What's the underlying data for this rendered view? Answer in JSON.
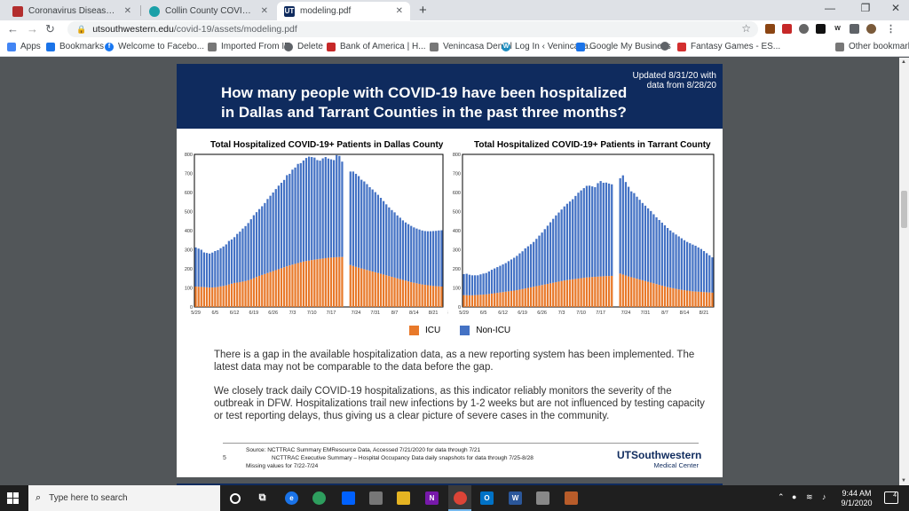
{
  "browser": {
    "tabs": [
      {
        "label": "Coronavirus Disease 2019 (COVID",
        "icon": "cdc-icon",
        "color": "#b32e2e"
      },
      {
        "label": "Collin County COVID-19",
        "icon": "globe-icon",
        "color": "#1aa0a8"
      },
      {
        "label": "modeling.pdf",
        "icon": "ut-icon",
        "color": "#0f2b5e",
        "icon_text": "UT"
      }
    ],
    "url_domain": "utsouthwestern.edu",
    "url_path": "/covid-19/assets/modeling.pdf",
    "bookmarks": [
      {
        "label": "Apps",
        "icon": "apps-grid-icon",
        "color": "#4285f4"
      },
      {
        "label": "Bookmarks",
        "icon": "star-icon",
        "color": "#1a73e8"
      },
      {
        "label": "Welcome to Facebo...",
        "icon": "facebook-icon",
        "color": "#1877f2",
        "icon_text": "f"
      },
      {
        "label": "Imported From IE",
        "icon": "folder-icon",
        "color": "#777777"
      },
      {
        "label": "Delete",
        "icon": "globe-icon",
        "color": "#5f6368"
      },
      {
        "label": "Bank of America | H...",
        "icon": "boa-icon",
        "color": "#c62828"
      },
      {
        "label": "Venincasa Dental",
        "icon": "folder-icon",
        "color": "#777777"
      },
      {
        "label": "Log In ‹ Venincasa...",
        "icon": "wordpress-icon",
        "color": "#1e8cbe",
        "icon_text": "W"
      },
      {
        "label": "Google My Business",
        "icon": "gmb-icon",
        "color": "#1a73e8"
      },
      {
        "label": "",
        "icon": "globe-icon",
        "color": "#5f6368"
      },
      {
        "label": "Fantasy Games - ES...",
        "icon": "espn-icon",
        "color": "#d32f2f"
      },
      {
        "label": "Other bookmarks",
        "icon": "folder-icon",
        "color": "#777777"
      }
    ]
  },
  "slide": {
    "updated_line1": "Updated 8/31/20 with",
    "updated_line2": "data from 8/28/20",
    "title_line1": "How many people with COVID-19 have been hospitalized",
    "title_line2": "in Dallas and Tarrant Counties in the past three months?",
    "legend_icu": "ICU",
    "legend_nonicu": "Non-ICU",
    "para1": "There is a gap in the available hospitalization data, as a new reporting system has been implemented. The latest data may not be comparable to the data before the gap.",
    "para2": "We closely track daily COVID-19 hospitalizations, as this indicator reliably monitors the severity of the outbreak in DFW. Hospitalizations trail new infections by 1-2 weeks but are not influenced by testing capacity or test reporting delays, thus giving us a clear picture of severe cases in the community.",
    "source1": "Source: NCTTRAC Summary EMResource Data, Accessed 7/21/2020 for data through 7/21",
    "source2": "NCTTRAC Executive Summary – Hospital Occupancy Data daily snapshots for data through 7/25-8/28",
    "source3": "Missing values for 7/22-7/24",
    "page_number": "5",
    "logo_line1": "UTSouthwestern",
    "logo_line2": "Medical Center"
  },
  "colors": {
    "icu": "#e8792a",
    "non_icu": "#4472c4",
    "banner": "#0f2b5e"
  },
  "chart_data": [
    {
      "type": "bar",
      "title": "Total Hospitalized COVID-19+ Patients in Dallas County",
      "stacked": true,
      "ylim": [
        0,
        800
      ],
      "yticks": [
        0,
        100,
        200,
        300,
        400,
        500,
        600,
        700,
        800
      ],
      "xticks": [
        "5/29",
        "6/5",
        "6/12",
        "6/19",
        "6/26",
        "7/3",
        "7/10",
        "7/17",
        "7/24",
        "7/31",
        "8/7",
        "8/14",
        "8/21",
        "8/28"
      ],
      "gap_after_index": 53,
      "series": [
        {
          "name": "ICU",
          "values": [
            107,
            106,
            105,
            104,
            103,
            102,
            102,
            103,
            105,
            108,
            110,
            113,
            118,
            122,
            126,
            128,
            130,
            133,
            136,
            140,
            145,
            151,
            157,
            163,
            168,
            173,
            178,
            183,
            188,
            193,
            198,
            203,
            208,
            213,
            218,
            222,
            226,
            230,
            234,
            238,
            241,
            243,
            246,
            248,
            250,
            252,
            254,
            256,
            258,
            259,
            260,
            261,
            262,
            262,
            220,
            215,
            210,
            206,
            202,
            198,
            194,
            190,
            186,
            182,
            178,
            174,
            170,
            166,
            162,
            158,
            154,
            150,
            146,
            142,
            138,
            134,
            130,
            127,
            124,
            121,
            118,
            116,
            114,
            112,
            110,
            109,
            108,
            107
          ]
        },
        {
          "name": "Non-ICU",
          "values": [
            205,
            200,
            195,
            182,
            180,
            178,
            183,
            190,
            193,
            200,
            207,
            215,
            228,
            232,
            240,
            255,
            265,
            278,
            288,
            300,
            315,
            330,
            340,
            350,
            360,
            372,
            388,
            400,
            412,
            425,
            438,
            448,
            458,
            478,
            480,
            498,
            505,
            520,
            520,
            530,
            540,
            545,
            540,
            535,
            520,
            515,
            525,
            530,
            520,
            515,
            510,
            535,
            530,
            500,
            490,
            495,
            488,
            480,
            465,
            460,
            450,
            438,
            430,
            420,
            410,
            398,
            385,
            372,
            360,
            350,
            342,
            330,
            322,
            312,
            305,
            300,
            295,
            290,
            287,
            285,
            283,
            282,
            283,
            285,
            288,
            290,
            293,
            295
          ]
        }
      ]
    },
    {
      "type": "bar",
      "title": "Total Hospitalized COVID-19+ Patients in Tarrant County",
      "stacked": true,
      "ylim": [
        0,
        800
      ],
      "yticks": [
        0,
        100,
        200,
        300,
        400,
        500,
        600,
        700,
        800
      ],
      "xticks": [
        "5/29",
        "6/5",
        "6/12",
        "6/19",
        "6/26",
        "7/3",
        "7/10",
        "7/17",
        "7/24",
        "7/31",
        "8/7",
        "8/14",
        "8/21",
        "8/28"
      ],
      "gap_after_index": 53,
      "series": [
        {
          "name": "ICU",
          "values": [
            62,
            62,
            61,
            61,
            62,
            63,
            64,
            65,
            66,
            68,
            70,
            72,
            74,
            76,
            78,
            80,
            82,
            84,
            86,
            88,
            91,
            94,
            97,
            100,
            103,
            106,
            109,
            112,
            115,
            118,
            121,
            124,
            127,
            130,
            133,
            136,
            139,
            141,
            143,
            145,
            147,
            149,
            151,
            153,
            155,
            156,
            157,
            158,
            159,
            160,
            161,
            162,
            162,
            163,
            175,
            170,
            165,
            160,
            156,
            152,
            148,
            144,
            140,
            136,
            132,
            128,
            124,
            120,
            116,
            112,
            108,
            104,
            101,
            98,
            95,
            92,
            90,
            88,
            86,
            84,
            82,
            81,
            80,
            79,
            78,
            77,
            76,
            75
          ]
        },
        {
          "name": "Non-ICU",
          "values": [
            110,
            112,
            108,
            105,
            104,
            103,
            107,
            110,
            112,
            118,
            125,
            130,
            135,
            140,
            145,
            150,
            158,
            165,
            172,
            180,
            190,
            198,
            210,
            218,
            226,
            235,
            248,
            262,
            275,
            290,
            305,
            320,
            335,
            350,
            362,
            375,
            388,
            400,
            410,
            420,
            435,
            450,
            460,
            470,
            480,
            480,
            475,
            470,
            490,
            500,
            490,
            490,
            485,
            480,
            500,
            520,
            490,
            470,
            450,
            445,
            430,
            418,
            405,
            395,
            385,
            375,
            362,
            350,
            340,
            330,
            320,
            310,
            300,
            292,
            285,
            278,
            270,
            262,
            255,
            250,
            245,
            240,
            232,
            225,
            215,
            205,
            195,
            185
          ]
        }
      ]
    }
  ],
  "taskbar": {
    "search_placeholder": "Type here to search",
    "time": "9:44 AM",
    "date": "9/1/2020",
    "notification_count": "4"
  }
}
